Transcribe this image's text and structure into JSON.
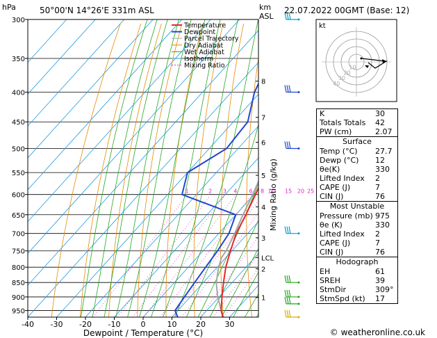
{
  "header": {
    "hpa_label": "hPa",
    "location": "50°00'N  14°26'E  331m  ASL",
    "km_label": "km",
    "asl_label": "ASL",
    "datetime": "22.07.2022  00GMT  (Base: 12)"
  },
  "chart_data": {
    "type": "skewt",
    "xlabel": "Dewpoint / Temperature (°C)",
    "right_axis_label": "Mixing Ratio (g/kg)",
    "xlim": [
      -40,
      40
    ],
    "pressure_ticks": [
      300,
      350,
      400,
      450,
      500,
      550,
      600,
      650,
      700,
      750,
      800,
      850,
      900,
      950
    ],
    "temperature_ticks": [
      -40,
      -30,
      -20,
      -10,
      0,
      10,
      20,
      30
    ],
    "km_ticks": [
      {
        "p": 383,
        "label": "8"
      },
      {
        "p": 442,
        "label": "7"
      },
      {
        "p": 488,
        "label": "6"
      },
      {
        "p": 556,
        "label": "5"
      },
      {
        "p": 630,
        "label": "4"
      },
      {
        "p": 712,
        "label": "3"
      },
      {
        "p": 770,
        "label": "LCL"
      },
      {
        "p": 805,
        "label": "2"
      },
      {
        "p": 902,
        "label": "1"
      }
    ],
    "mixing_ratio_labels": [
      {
        "w": 1,
        "label": "1"
      },
      {
        "w": 2,
        "label": "2"
      },
      {
        "w": 3,
        "label": "3"
      },
      {
        "w": 4,
        "label": "4"
      },
      {
        "w": 6,
        "label": "6"
      },
      {
        "w": 8,
        "label": "8"
      },
      {
        "w": 10,
        "label": "10"
      },
      {
        "w": 15,
        "label": "15"
      },
      {
        "w": 20,
        "label": "20"
      },
      {
        "w": 25,
        "label": "25"
      }
    ],
    "legend": [
      "Temperature",
      "Dewpoint",
      "Parcel Trajectory",
      "Dry Adiabat",
      "Wet Adiabat",
      "Isotherm",
      "Mixing Ratio"
    ],
    "colors": {
      "temperature": "#e8262a",
      "dewpoint": "#1e46d2",
      "parcel": "#a6a6a6",
      "dry_adiabat": "#e58a00",
      "wet_adiabat": "#22a81e",
      "isotherm": "#1e9be0",
      "mixing_ratio": "#e020c0"
    },
    "series": [
      {
        "name": "Temperature",
        "points": [
          [
            975,
            27.7
          ],
          [
            950,
            25
          ],
          [
            900,
            21
          ],
          [
            850,
            17
          ],
          [
            800,
            13
          ],
          [
            750,
            9.5
          ],
          [
            700,
            6
          ],
          [
            650,
            3.5
          ],
          [
            600,
            0.5
          ],
          [
            550,
            -3
          ],
          [
            500,
            -6.5
          ],
          [
            450,
            -11
          ],
          [
            400,
            -17
          ],
          [
            350,
            -25
          ],
          [
            300,
            -33
          ]
        ]
      },
      {
        "name": "Dewpoint",
        "points": [
          [
            975,
            12
          ],
          [
            950,
            9
          ],
          [
            900,
            8
          ],
          [
            850,
            7
          ],
          [
            800,
            6
          ],
          [
            750,
            5
          ],
          [
            700,
            3.5
          ],
          [
            650,
            0
          ],
          [
            600,
            -25
          ],
          [
            550,
            -30
          ],
          [
            500,
            -24
          ],
          [
            450,
            -25
          ],
          [
            400,
            -32
          ],
          [
            350,
            -37
          ],
          [
            300,
            -45
          ]
        ]
      },
      {
        "name": "Parcel Trajectory",
        "points": [
          [
            975,
            27.7
          ],
          [
            900,
            19.5
          ],
          [
            850,
            14.5
          ],
          [
            800,
            10.5
          ],
          [
            770,
            8.5
          ],
          [
            750,
            8
          ],
          [
            700,
            5.5
          ],
          [
            650,
            2.5
          ],
          [
            600,
            -0.5
          ],
          [
            550,
            -4
          ],
          [
            500,
            -8
          ],
          [
            450,
            -13
          ],
          [
            400,
            -19
          ],
          [
            350,
            -26
          ],
          [
            300,
            -35
          ]
        ]
      }
    ]
  },
  "hodograph": {
    "label": "kt",
    "ring_labels": [
      "10",
      "20",
      "30",
      "40"
    ]
  },
  "winds": [
    {
      "p": 300,
      "color": "#00a0d0"
    },
    {
      "p": 400,
      "color": "#1e46d2"
    },
    {
      "p": 500,
      "color": "#1e46d2"
    },
    {
      "p": 700,
      "color": "#00a0d0"
    },
    {
      "p": 850,
      "color": "#22a81e"
    },
    {
      "p": 900,
      "color": "#22a81e"
    },
    {
      "p": 925,
      "color": "#22a81e"
    },
    {
      "p": 975,
      "color": "#d6b000"
    }
  ],
  "indices": [
    {
      "label": "K",
      "value": "30"
    },
    {
      "label": "Totals Totals",
      "value": "42"
    },
    {
      "label": "PW (cm)",
      "value": "2.07"
    }
  ],
  "surface": {
    "title": "Surface",
    "rows": [
      {
        "label": "Temp (°C)",
        "value": "27.7"
      },
      {
        "label": "Dewp (°C)",
        "value": "12"
      },
      {
        "label": "θe(K)",
        "value": "330"
      },
      {
        "label": "Lifted Index",
        "value": "2"
      },
      {
        "label": "CAPE (J)",
        "value": "7"
      },
      {
        "label": "CIN (J)",
        "value": "76"
      }
    ]
  },
  "most_unstable": {
    "title": "Most Unstable",
    "rows": [
      {
        "label": "Pressure (mb)",
        "value": "975"
      },
      {
        "label": "θe (K)",
        "value": "330"
      },
      {
        "label": "Lifted Index",
        "value": "2"
      },
      {
        "label": "CAPE (J)",
        "value": "7"
      },
      {
        "label": "CIN (J)",
        "value": "76"
      }
    ]
  },
  "hodograph_table": {
    "title": "Hodograph",
    "rows": [
      {
        "label": "EH",
        "value": "61"
      },
      {
        "label": "SREH",
        "value": "39"
      },
      {
        "label": "StmDir",
        "value": "309°"
      },
      {
        "label": "StmSpd (kt)",
        "value": "17"
      }
    ]
  },
  "copyright": "© weatheronline.co.uk"
}
